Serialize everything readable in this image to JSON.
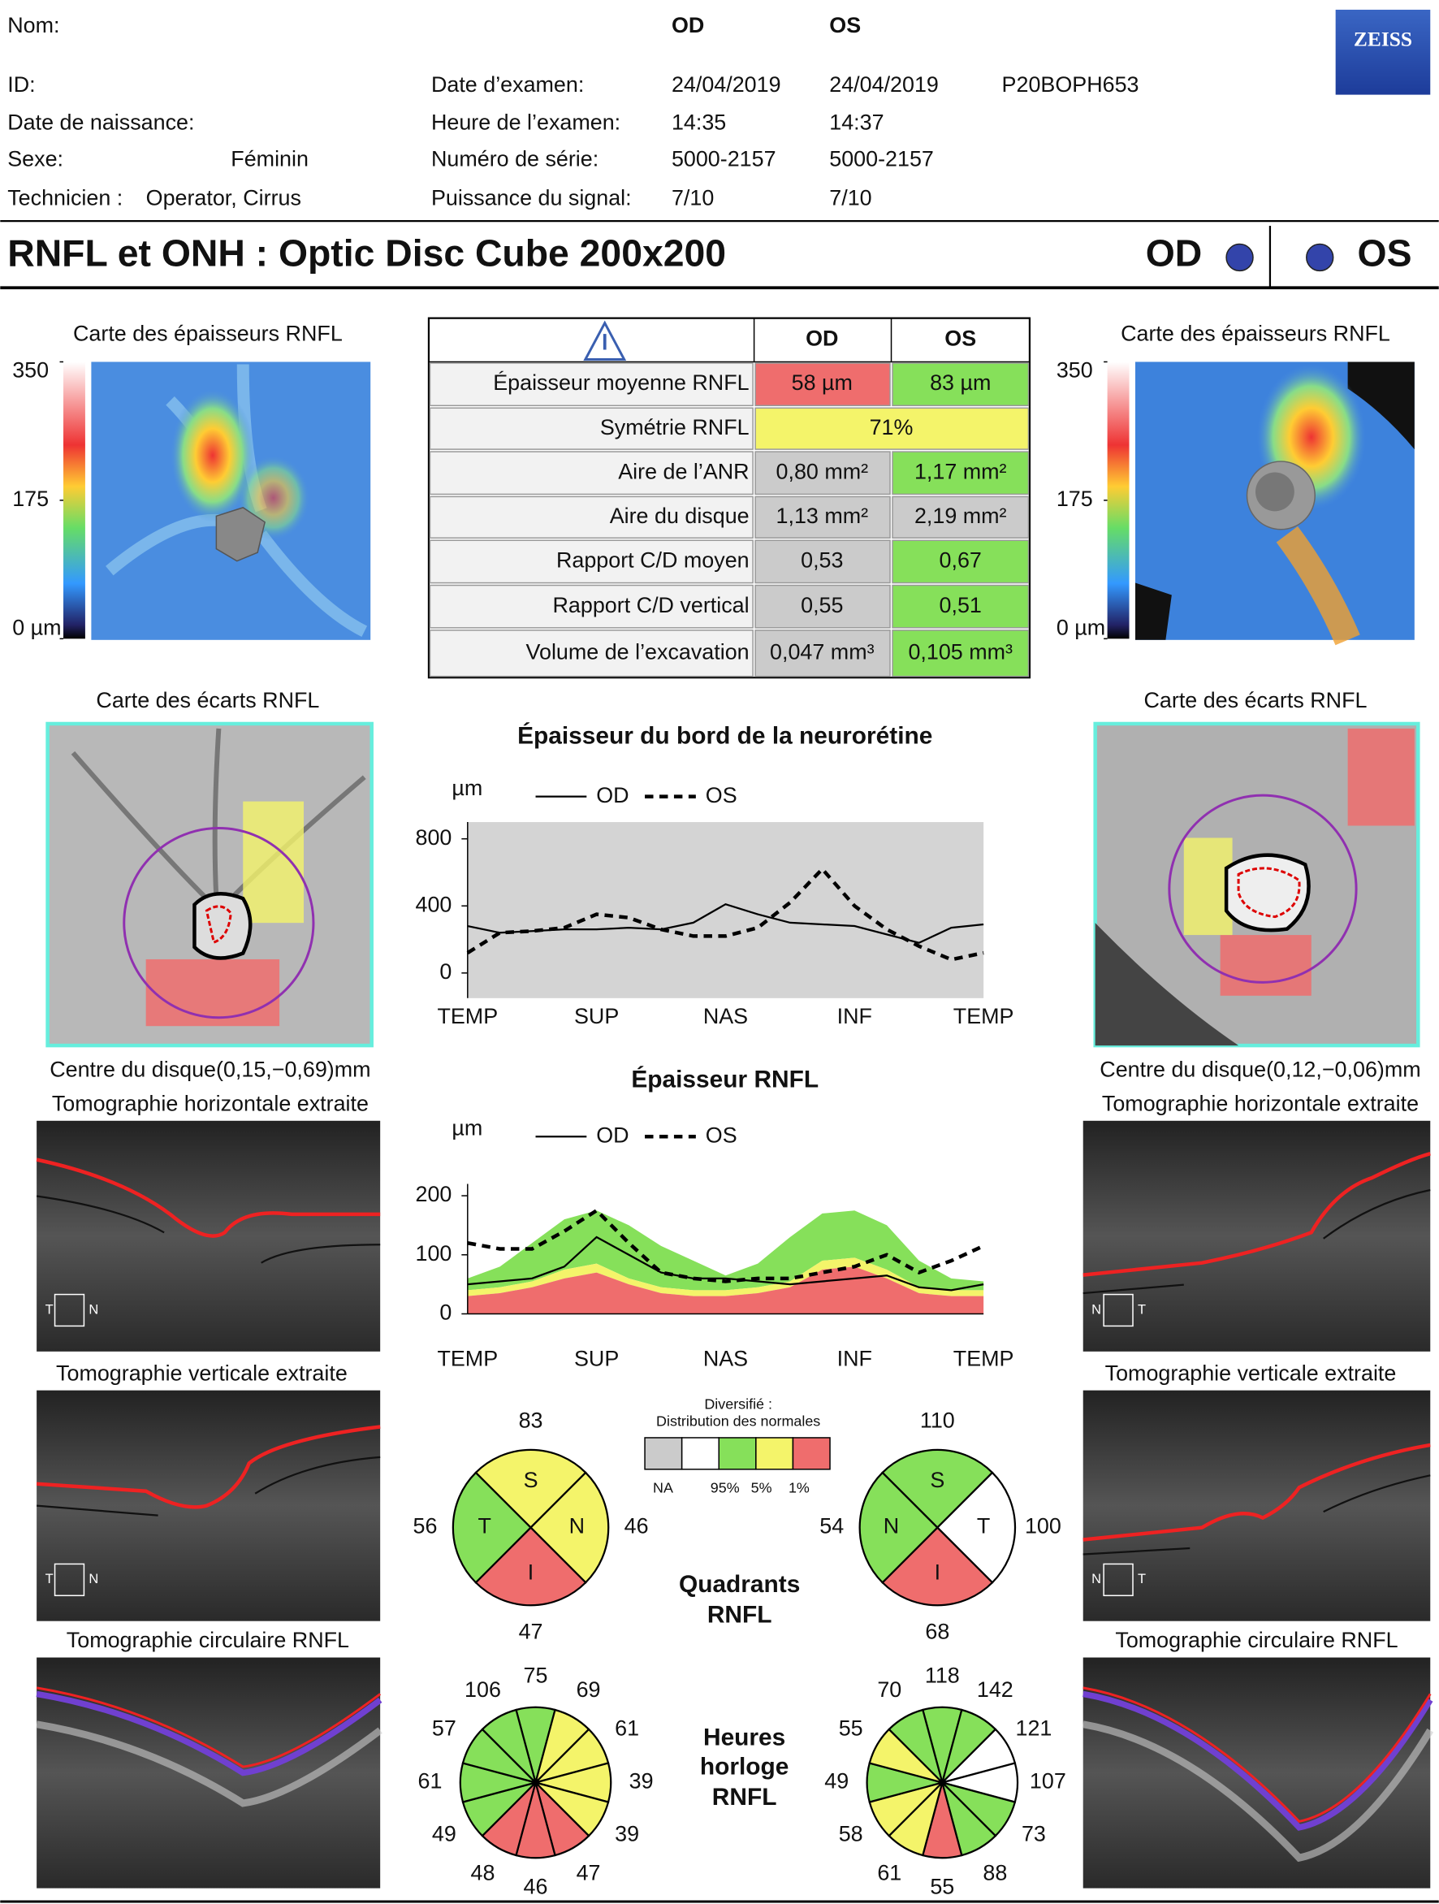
{
  "logo": "ZEISS",
  "patient": {
    "name_label": "Nom:",
    "id_label": "ID:",
    "dob_label": "Date de naissance:",
    "sex_label": "Sexe:",
    "sex": "Féminin",
    "technician_label": "Technicien :",
    "technician": "Operator, Cirrus"
  },
  "exam": {
    "columns": [
      "OD",
      "OS"
    ],
    "reference": "P20BOPH653",
    "rows": [
      {
        "label": "Date d’examen:",
        "od": "24/04/2019",
        "os": "24/04/2019"
      },
      {
        "label": "Heure de l’examen:",
        "od": "14:35",
        "os": "14:37"
      },
      {
        "label": "Numéro de série:",
        "od": "5000-2157",
        "os": "5000-2157"
      },
      {
        "label": "Puissance du signal:",
        "od": "7/10",
        "os": "7/10"
      }
    ]
  },
  "title": "RNFL et ONH : Optic Disc Cube 200x200",
  "eyes": [
    "OD",
    "OS"
  ],
  "thickness_map": {
    "title": "Carte des épaisseurs RNFL",
    "lim": [
      0,
      350
    ],
    "ticks": [
      350,
      175,
      {
        "value": 0,
        "label": "0 µm"
      }
    ]
  },
  "summary_table": {
    "columns": [
      "OD",
      "OS"
    ],
    "rows": [
      {
        "label": "Épaisseur moyenne RNFL",
        "od": {
          "text": "58 µm",
          "color": "#ef6d6d"
        },
        "os": {
          "text": "83 µm",
          "color": "#86e05a"
        }
      },
      {
        "label": "Symétrie RNFL",
        "both": {
          "text": "71%",
          "color": "#f4f46a"
        }
      },
      {
        "label": "Aire de l’ANR",
        "od": {
          "text": "0,80 mm²",
          "color": "#cbcbcb"
        },
        "os": {
          "text": "1,17 mm²",
          "color": "#86e05a"
        }
      },
      {
        "label": "Aire du disque",
        "od": {
          "text": "1,13 mm²",
          "color": "#cbcbcb"
        },
        "os": {
          "text": "2,19 mm²",
          "color": "#cbcbcb"
        }
      },
      {
        "label": "Rapport C/D moyen",
        "od": {
          "text": "0,53",
          "color": "#cbcbcb"
        },
        "os": {
          "text": "0,67",
          "color": "#86e05a"
        }
      },
      {
        "label": "Rapport C/D vertical",
        "od": {
          "text": "0,55",
          "color": "#cbcbcb"
        },
        "os": {
          "text": "0,51",
          "color": "#86e05a"
        }
      },
      {
        "label": "Volume de l’excavation",
        "od": {
          "text": "0,047 mm³",
          "color": "#cbcbcb"
        },
        "os": {
          "text": "0,105 mm³",
          "color": "#86e05a"
        }
      }
    ]
  },
  "deviation_map": {
    "title": "Carte des écarts RNFL",
    "od_center": "Centre du disque(0,15,−0,69)mm",
    "os_center": "Centre du disque(0,12,−0,06)mm"
  },
  "scans": {
    "horizontal": "Tomographie horizontale extraite",
    "vertical": "Tomographie verticale extraite",
    "circular": "Tomographie circulaire RNFL",
    "od_orientation": [
      "T",
      "N"
    ],
    "os_orientation": [
      "N",
      "T"
    ]
  },
  "rim_chart": {
    "type": "line",
    "title": "Épaisseur du bord de la neurorétine",
    "y_unit": "µm",
    "x_labels": [
      "TEMP",
      "SUP",
      "NAS",
      "INF",
      "TEMP"
    ],
    "ylim": [
      -150,
      900
    ],
    "yticks": [
      0,
      400,
      800
    ],
    "background": "#d4d4d4",
    "series": [
      {
        "name": "OD",
        "dash": false,
        "values": [
          280,
          240,
          250,
          260,
          260,
          270,
          260,
          300,
          410,
          350,
          300,
          290,
          280,
          230,
          180,
          270,
          290
        ]
      },
      {
        "name": "OS",
        "dash": true,
        "values": [
          120,
          240,
          250,
          270,
          350,
          330,
          260,
          220,
          220,
          270,
          420,
          620,
          400,
          260,
          160,
          80,
          120
        ]
      }
    ]
  },
  "rnfl_chart": {
    "type": "line",
    "title": "Épaisseur RNFL",
    "y_unit": "µm",
    "x_labels": [
      "TEMP",
      "SUP",
      "NAS",
      "INF",
      "TEMP"
    ],
    "ylim": [
      0,
      220
    ],
    "yticks": [
      0,
      100,
      200
    ],
    "norms": {
      "p1": [
        30,
        35,
        45,
        60,
        70,
        50,
        35,
        30,
        30,
        35,
        45,
        75,
        80,
        60,
        35,
        30,
        30
      ],
      "p5": [
        40,
        45,
        55,
        75,
        85,
        60,
        45,
        40,
        40,
        45,
        55,
        90,
        95,
        75,
        45,
        40,
        40
      ],
      "p95": [
        60,
        80,
        120,
        160,
        175,
        150,
        115,
        90,
        65,
        85,
        130,
        170,
        175,
        150,
        90,
        60,
        55
      ]
    },
    "series": [
      {
        "name": "OD",
        "dash": false,
        "values": [
          50,
          55,
          60,
          80,
          130,
          100,
          70,
          60,
          60,
          55,
          50,
          55,
          60,
          65,
          45,
          40,
          50
        ]
      },
      {
        "name": "OS",
        "dash": true,
        "values": [
          120,
          110,
          110,
          140,
          175,
          120,
          70,
          60,
          55,
          60,
          60,
          70,
          80,
          100,
          70,
          90,
          115
        ]
      }
    ]
  },
  "legend": {
    "title": [
      "Diversifié :",
      "Distribution des normales"
    ],
    "colors": [
      "#cbcbcb",
      "#ffffff",
      "#86e05a",
      "#f4f46a",
      "#ef6d6d"
    ],
    "labels": [
      "NA",
      "95%",
      "5%",
      "1%"
    ]
  },
  "quadrants": {
    "title": [
      "Quadrants",
      "RNFL"
    ],
    "od": [
      {
        "letter": "S",
        "value": 83,
        "color": "#f4f46a"
      },
      {
        "letter": "N",
        "value": 46,
        "color": "#f4f46a"
      },
      {
        "letter": "I",
        "value": 47,
        "color": "#ef6d6d"
      },
      {
        "letter": "T",
        "value": 56,
        "color": "#86e05a"
      }
    ],
    "os": [
      {
        "letter": "S",
        "value": 110,
        "color": "#86e05a"
      },
      {
        "letter": "T",
        "value": 100,
        "color": "#ffffff"
      },
      {
        "letter": "I",
        "value": 68,
        "color": "#ef6d6d"
      },
      {
        "letter": "N",
        "value": 54,
        "color": "#86e05a"
      }
    ]
  },
  "clock_hours": {
    "title": [
      "Heures",
      "horloge",
      "RNFL"
    ],
    "od": {
      "values": [
        75,
        69,
        61,
        39,
        39,
        47,
        46,
        48,
        49,
        61,
        57,
        106
      ],
      "colors": [
        "#86e05a",
        "#f4f46a",
        "#f4f46a",
        "#f4f46a",
        "#f4f46a",
        "#ef6d6d",
        "#ef6d6d",
        "#ef6d6d",
        "#86e05a",
        "#86e05a",
        "#86e05a",
        "#86e05a"
      ]
    },
    "os": {
      "values": [
        118,
        142,
        121,
        107,
        73,
        88,
        55,
        61,
        58,
        49,
        55,
        70
      ],
      "colors": [
        "#86e05a",
        "#86e05a",
        "#ffffff",
        "#ffffff",
        "#86e05a",
        "#86e05a",
        "#ef6d6d",
        "#f4f46a",
        "#f4f46a",
        "#86e05a",
        "#f4f46a",
        "#86e05a"
      ]
    }
  }
}
